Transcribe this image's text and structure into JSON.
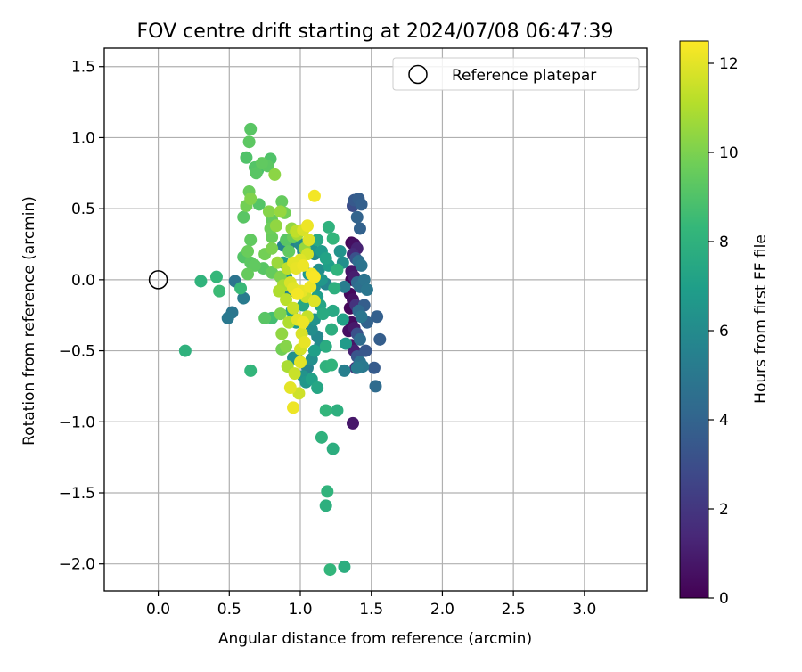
{
  "chart_data": {
    "type": "scatter",
    "title": "FOV centre drift starting at 2024/07/08 06:47:39",
    "xlabel": "Angular distance from reference (arcmin)",
    "ylabel": "Rotation from reference (arcmin)",
    "xlim": [
      -0.38,
      3.44
    ],
    "ylim": [
      -2.19,
      1.63
    ],
    "x_ticks": [
      0.0,
      0.5,
      1.0,
      1.5,
      2.0,
      2.5,
      3.0
    ],
    "x_tick_labels": [
      "0.0",
      "0.5",
      "1.0",
      "1.5",
      "2.0",
      "2.5",
      "3.0"
    ],
    "y_ticks": [
      -2.0,
      -1.5,
      -1.0,
      -0.5,
      0.0,
      0.5,
      1.0,
      1.5
    ],
    "y_tick_labels": [
      "−2.0",
      "−1.5",
      "−1.0",
      "−0.5",
      "0.0",
      "0.5",
      "1.0",
      "1.5"
    ],
    "grid": true,
    "legend": {
      "placement": "top-right",
      "entries": [
        {
          "label": "Reference platepar",
          "marker": "open-circle"
        }
      ]
    },
    "reference_point": {
      "label": "Reference platepar",
      "x": 0.0,
      "y": 0.0
    },
    "colorbar": {
      "label": "Hours from first FF file",
      "range": [
        0,
        12.5
      ],
      "ticks": [
        0,
        2,
        4,
        6,
        8,
        10,
        12
      ],
      "tick_labels": [
        "0",
        "2",
        "4",
        "6",
        "8",
        "10",
        "12"
      ],
      "colormap": "viridis",
      "stops": [
        "#440154",
        "#482878",
        "#3e4989",
        "#31688e",
        "#26828e",
        "#1f9e89",
        "#35b779",
        "#6ece58",
        "#b5de2b",
        "#fde725"
      ]
    },
    "series": [
      {
        "color_by": "hours",
        "points": [
          [
            1.37,
            0.52,
            3.0
          ],
          [
            1.38,
            0.56,
            3.5
          ],
          [
            1.41,
            0.57,
            3.7
          ],
          [
            1.43,
            0.53,
            3.8
          ],
          [
            1.4,
            0.44,
            4.0
          ],
          [
            1.42,
            0.36,
            3.9
          ],
          [
            1.36,
            0.26,
            0.2
          ],
          [
            1.38,
            0.25,
            0.5
          ],
          [
            1.4,
            0.22,
            1.2
          ],
          [
            1.37,
            0.18,
            1.5
          ],
          [
            1.39,
            0.15,
            3.2
          ],
          [
            1.41,
            0.13,
            4.5
          ],
          [
            1.43,
            0.1,
            4.8
          ],
          [
            1.36,
            0.06,
            0.8
          ],
          [
            1.38,
            0.02,
            1.0
          ],
          [
            1.4,
            -0.02,
            4.2
          ],
          [
            1.42,
            -0.05,
            4.6
          ],
          [
            1.35,
            -0.1,
            0.3
          ],
          [
            1.37,
            -0.14,
            0.6
          ],
          [
            1.39,
            -0.18,
            1.8
          ],
          [
            1.41,
            -0.22,
            4.3
          ],
          [
            1.43,
            -0.26,
            4.9
          ],
          [
            1.36,
            -0.3,
            0.4
          ],
          [
            1.38,
            -0.34,
            0.9
          ],
          [
            1.4,
            -0.38,
            3.1
          ],
          [
            1.42,
            -0.42,
            4.4
          ],
          [
            1.36,
            -0.46,
            0.7
          ],
          [
            1.38,
            -0.5,
            1.1
          ],
          [
            1.4,
            -0.54,
            3.3
          ],
          [
            1.42,
            -0.58,
            4.7
          ],
          [
            1.39,
            -0.62,
            1.6
          ],
          [
            1.44,
            -0.61,
            5.0
          ],
          [
            1.34,
            -0.36,
            0.5
          ],
          [
            1.35,
            -0.2,
            0.2
          ],
          [
            1.36,
            0.0,
            0.1
          ],
          [
            1.45,
            0.0,
            4.8
          ],
          [
            1.47,
            -0.07,
            4.9
          ],
          [
            1.45,
            -0.18,
            3.7
          ],
          [
            1.47,
            -0.3,
            3.9
          ],
          [
            1.46,
            -0.5,
            3.4
          ],
          [
            1.52,
            -0.62,
            3.6
          ],
          [
            1.54,
            -0.26,
            3.8
          ],
          [
            1.56,
            -0.42,
            3.7
          ],
          [
            1.53,
            -0.75,
            4.4
          ],
          [
            1.4,
            -0.62,
            5.2
          ],
          [
            1.37,
            -1.01,
            0.8
          ],
          [
            1.31,
            -0.64,
            5.4
          ],
          [
            0.54,
            -0.01,
            4.8
          ],
          [
            0.6,
            -0.13,
            5.2
          ],
          [
            0.52,
            -0.23,
            4.9
          ],
          [
            0.49,
            -0.27,
            5.0
          ],
          [
            0.58,
            -0.06,
            8.4
          ],
          [
            0.19,
            -0.5,
            8.0
          ],
          [
            0.3,
            -0.01,
            8.1
          ],
          [
            0.41,
            0.02,
            8.3
          ],
          [
            0.43,
            -0.08,
            8.5
          ],
          [
            0.65,
            -0.64,
            8.2
          ],
          [
            0.65,
            1.06,
            9.2
          ],
          [
            0.64,
            0.97,
            9.3
          ],
          [
            0.62,
            0.86,
            9.0
          ],
          [
            0.68,
            0.79,
            9.1
          ],
          [
            0.7,
            0.77,
            8.9
          ],
          [
            0.73,
            0.82,
            9.4
          ],
          [
            0.77,
            0.8,
            9.3
          ],
          [
            0.79,
            0.85,
            9.0
          ],
          [
            0.82,
            0.74,
            10.3
          ],
          [
            0.69,
            0.75,
            9.2
          ],
          [
            0.64,
            0.62,
            9.6
          ],
          [
            0.65,
            0.57,
            10.1
          ],
          [
            0.62,
            0.52,
            9.8
          ],
          [
            0.6,
            0.44,
            9.2
          ],
          [
            0.71,
            0.53,
            9.1
          ],
          [
            0.78,
            0.48,
            10.2
          ],
          [
            0.8,
            0.42,
            9.5
          ],
          [
            0.79,
            0.36,
            9.7
          ],
          [
            0.8,
            0.3,
            9.6
          ],
          [
            0.8,
            0.22,
            10.0
          ],
          [
            0.83,
            0.38,
            10.4
          ],
          [
            0.86,
            0.48,
            10.5
          ],
          [
            0.89,
            0.47,
            9.8
          ],
          [
            0.87,
            0.55,
            9.5
          ],
          [
            0.9,
            0.28,
            9.2
          ],
          [
            0.88,
            0.24,
            5.6
          ],
          [
            0.92,
            0.2,
            9.4
          ],
          [
            0.95,
            0.3,
            9.6
          ],
          [
            0.98,
            0.32,
            10.8
          ],
          [
            0.65,
            0.28,
            9.4
          ],
          [
            0.63,
            0.2,
            9.6
          ],
          [
            0.6,
            0.16,
            9.1
          ],
          [
            0.65,
            0.12,
            9.3
          ],
          [
            0.63,
            0.04,
            9.5
          ],
          [
            0.68,
            0.1,
            9.4
          ],
          [
            0.75,
            0.18,
            9.8
          ],
          [
            0.74,
            0.08,
            9.2
          ],
          [
            0.8,
            0.05,
            9.5
          ],
          [
            0.84,
            0.12,
            10.6
          ],
          [
            0.86,
            0.02,
            10.1
          ],
          [
            0.85,
            -0.08,
            11.0
          ],
          [
            0.8,
            -0.27,
            8.7
          ],
          [
            0.75,
            -0.27,
            9.2
          ],
          [
            0.86,
            -0.24,
            10.0
          ],
          [
            0.87,
            -0.38,
            10.4
          ],
          [
            0.9,
            -0.47,
            10.2
          ],
          [
            0.87,
            -0.49,
            9.8
          ],
          [
            0.91,
            -0.61,
            10.9
          ],
          [
            0.93,
            -0.76,
            12.0
          ],
          [
            0.95,
            -0.9,
            12.2
          ],
          [
            0.96,
            -0.66,
            11.5
          ],
          [
            0.99,
            -0.8,
            11.6
          ],
          [
            1.0,
            -0.58,
            12.0
          ],
          [
            0.94,
            0.36,
            10.4
          ],
          [
            0.97,
            0.34,
            11.3
          ],
          [
            1.02,
            0.35,
            11.8
          ],
          [
            1.05,
            0.38,
            12.2
          ],
          [
            1.1,
            0.59,
            12.3
          ],
          [
            0.95,
            0.12,
            12.0
          ],
          [
            0.97,
            0.08,
            12.1
          ],
          [
            1.0,
            0.14,
            11.9
          ],
          [
            1.02,
            0.1,
            12.2
          ],
          [
            1.05,
            0.18,
            11.7
          ],
          [
            1.08,
            0.04,
            12.3
          ],
          [
            1.1,
            0.02,
            12.4
          ],
          [
            0.93,
            -0.02,
            11.8
          ],
          [
            0.95,
            -0.06,
            12.0
          ],
          [
            0.98,
            -0.1,
            12.3
          ],
          [
            1.01,
            -0.08,
            12.1
          ],
          [
            1.04,
            -0.12,
            11.6
          ],
          [
            1.07,
            -0.05,
            12.2
          ],
          [
            1.1,
            -0.15,
            11.9
          ],
          [
            0.95,
            -0.2,
            11.5
          ],
          [
            0.98,
            -0.28,
            12.0
          ],
          [
            1.02,
            -0.3,
            12.2
          ],
          [
            1.05,
            -0.26,
            11.4
          ],
          [
            1.01,
            -0.38,
            11.8
          ],
          [
            1.03,
            -0.44,
            12.1
          ],
          [
            1.0,
            -0.49,
            11.7
          ],
          [
            0.92,
            -0.3,
            11.0
          ],
          [
            0.9,
            -0.14,
            11.2
          ],
          [
            0.88,
            -0.04,
            10.9
          ],
          [
            0.91,
            0.08,
            11.3
          ],
          [
            1.06,
            0.28,
            11.9
          ],
          [
            1.03,
            0.22,
            10.5
          ],
          [
            1.0,
            0.25,
            6.0
          ],
          [
            1.02,
            0.2,
            5.8
          ],
          [
            1.05,
            0.25,
            6.2
          ],
          [
            1.08,
            0.23,
            6.5
          ],
          [
            1.1,
            0.18,
            5.9
          ],
          [
            1.12,
            0.28,
            7.5
          ],
          [
            1.15,
            0.2,
            6.8
          ],
          [
            1.18,
            0.15,
            7.2
          ],
          [
            1.2,
            0.1,
            7.0
          ],
          [
            1.13,
            0.07,
            6.1
          ],
          [
            1.15,
            0.0,
            6.6
          ],
          [
            1.18,
            -0.03,
            5.7
          ],
          [
            1.1,
            -0.05,
            6.3
          ],
          [
            1.12,
            -0.12,
            6.9
          ],
          [
            1.14,
            -0.18,
            7.3
          ],
          [
            1.16,
            -0.24,
            7.6
          ],
          [
            1.1,
            -0.28,
            6.4
          ],
          [
            1.08,
            -0.35,
            6.1
          ],
          [
            1.12,
            -0.4,
            5.8
          ],
          [
            1.14,
            -0.46,
            6.0
          ],
          [
            1.1,
            -0.5,
            7.0
          ],
          [
            1.08,
            -0.56,
            6.2
          ],
          [
            1.05,
            -0.62,
            5.6
          ],
          [
            1.02,
            -0.68,
            6.4
          ],
          [
            1.04,
            -0.72,
            6.6
          ],
          [
            1.08,
            -0.7,
            7.1
          ],
          [
            1.12,
            -0.76,
            7.4
          ],
          [
            0.98,
            -0.56,
            5.9
          ],
          [
            0.95,
            -0.55,
            6.3
          ],
          [
            0.97,
            -0.3,
            6.8
          ],
          [
            0.94,
            -0.22,
            7.2
          ],
          [
            0.92,
            -0.08,
            5.7
          ],
          [
            0.9,
            0.02,
            6.5
          ],
          [
            0.88,
            0.12,
            6.9
          ],
          [
            0.93,
            0.26,
            5.5
          ],
          [
            1.22,
            -0.35,
            7.8
          ],
          [
            1.24,
            -0.06,
            7.9
          ],
          [
            1.26,
            0.07,
            8.1
          ],
          [
            1.23,
            0.29,
            8.2
          ],
          [
            1.2,
            0.37,
            8.0
          ],
          [
            1.18,
            -0.47,
            7.7
          ],
          [
            1.23,
            -0.22,
            7.5
          ],
          [
            1.18,
            -0.61,
            8.0
          ],
          [
            1.22,
            -0.6,
            8.1
          ],
          [
            1.18,
            -0.92,
            8.2
          ],
          [
            1.26,
            -0.92,
            7.9
          ],
          [
            1.15,
            -1.11,
            8.0
          ],
          [
            1.23,
            -1.19,
            7.8
          ],
          [
            1.19,
            -1.49,
            8.1
          ],
          [
            1.18,
            -1.59,
            7.9
          ],
          [
            1.21,
            -2.04,
            8.2
          ],
          [
            1.31,
            -2.02,
            7.8
          ],
          [
            1.3,
            0.12,
            6.2
          ],
          [
            1.3,
            -0.28,
            7.1
          ],
          [
            1.32,
            -0.45,
            6.8
          ],
          [
            1.28,
            0.2,
            6.4
          ],
          [
            1.31,
            -0.05,
            5.3
          ],
          [
            1.06,
            0.04,
            6.7
          ],
          [
            1.02,
            -0.18,
            7.4
          ]
        ]
      }
    ]
  }
}
